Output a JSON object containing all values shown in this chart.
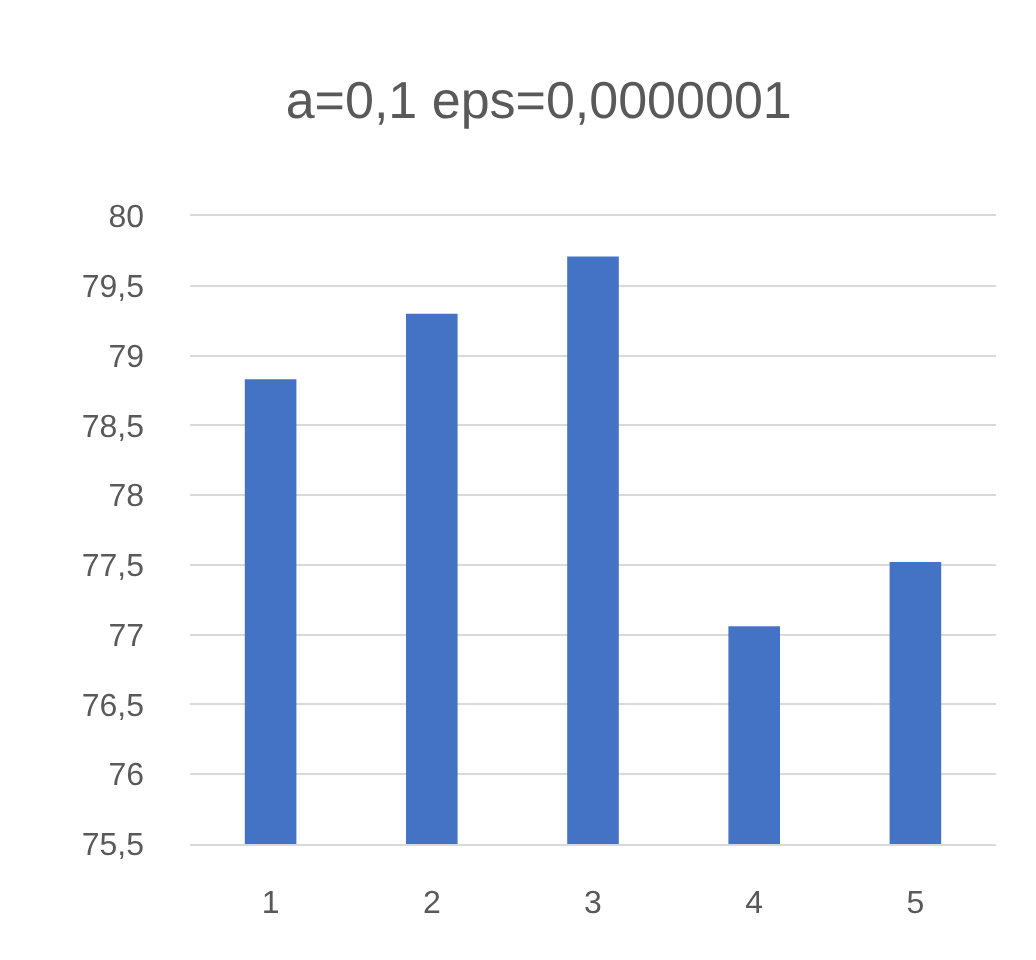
{
  "chart_data": {
    "type": "bar",
    "title": "a=0,1 eps=0,0000001",
    "categories": [
      "1",
      "2",
      "3",
      "4",
      "5"
    ],
    "values": [
      78.83,
      79.3,
      79.71,
      77.06,
      77.52
    ],
    "color": "#4472c4",
    "ylim": [
      75.5,
      80
    ],
    "yticks": [
      {
        "value": 75.5,
        "label": "75,5"
      },
      76,
      {
        "value": 76.5,
        "label": "76,5"
      },
      77,
      {
        "value": 77.5,
        "label": "77,5"
      },
      78,
      {
        "value": 78.5,
        "label": "78,5"
      },
      79,
      {
        "value": 79.5,
        "label": "79,5"
      },
      80
    ],
    "grid": "y"
  }
}
